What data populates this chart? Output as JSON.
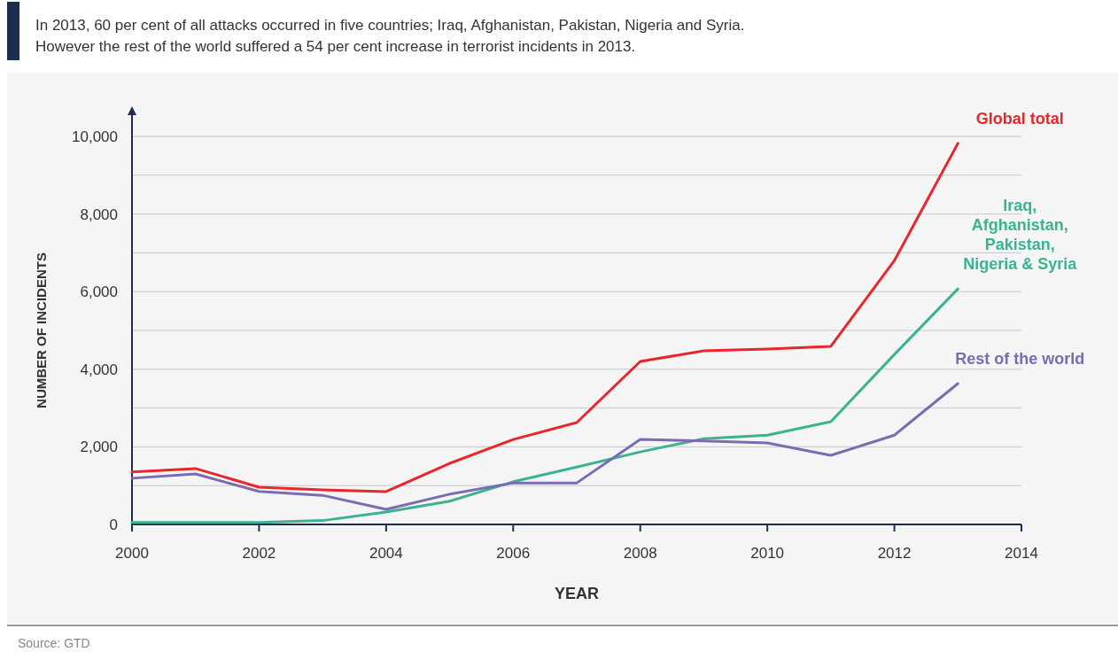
{
  "chart_data": {
    "type": "line",
    "title": "In 2013, 60 per cent of all attacks occurred in five countries; Iraq, Afghanistan, Pakistan, Nigeria and Syria. However the rest of the world suffered a 54 per cent increase in terrorist incidents in 2013.",
    "xlabel": "YEAR",
    "ylabel": "NUMBER OF INCIDENTS",
    "annotations": [
      "Source: GTD"
    ],
    "x": [
      2000,
      2001,
      2002,
      2003,
      2004,
      2005,
      2006,
      2007,
      2008,
      2009,
      2010,
      2011,
      2012,
      2013
    ],
    "series": [
      {
        "name": "Global total",
        "color": "#e8262b",
        "values": [
          1350,
          1440,
          960,
          890,
          845,
          1575,
          2190,
          2625,
          4200,
          4475,
          4520,
          4590,
          6800,
          9820
        ]
      },
      {
        "name": "Iraq, Afghanistan, Pakistan, Nigeria & Syria",
        "color": "#3bb393",
        "values": [
          50,
          50,
          50,
          100,
          320,
          600,
          1100,
          1480,
          1870,
          2210,
          2300,
          2650,
          4380,
          6070
        ]
      },
      {
        "name": "Rest of the world",
        "color": "#7b6bb0",
        "values": [
          1190,
          1300,
          850,
          750,
          390,
          780,
          1070,
          1070,
          2190,
          2150,
          2100,
          1780,
          2300,
          3630
        ]
      }
    ],
    "xlim": [
      2000,
      2014
    ],
    "xticks": [
      2000,
      2002,
      2004,
      2006,
      2008,
      2010,
      2012,
      2014
    ],
    "ylim": [
      0,
      10000
    ],
    "yticks": [
      0,
      {
        "value": 1000,
        "label": null
      },
      {
        "value": 2000,
        "label": "2,000"
      },
      {
        "value": 3000,
        "label": null
      },
      {
        "value": 4000,
        "label": "4,000"
      },
      {
        "value": 5000,
        "label": null
      },
      {
        "value": 6000,
        "label": "6,000"
      },
      {
        "value": 7000,
        "label": null
      },
      {
        "value": 8000,
        "label": "8,000"
      },
      {
        "value": 9000,
        "label": null
      },
      {
        "value": 10000,
        "label": "10,000"
      }
    ],
    "grid": "y",
    "legend": false,
    "line_style": "solid",
    "marker": "none"
  }
}
